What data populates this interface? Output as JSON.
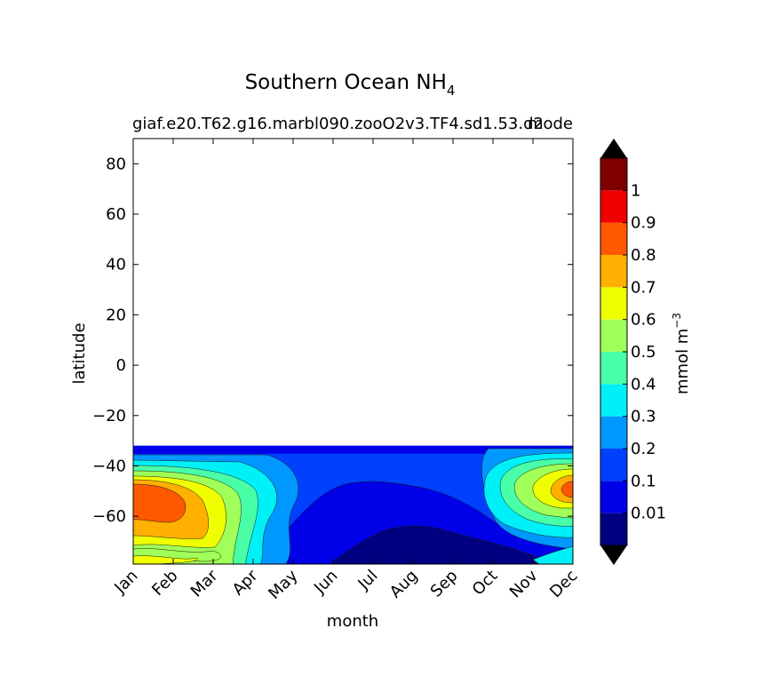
{
  "chart_data": {
    "type": "heatmap",
    "title_main": "Southern Ocean NH",
    "title_sub": "4",
    "subtitle_left": "giaf.e20.T62.g16.marbl090.zooO2v3.TF4.sd1.53.d2",
    "subtitle_right": "mode",
    "xlabel": "month",
    "ylabel": "latitude",
    "colorbar_label": "mmol m",
    "colorbar_label_exp": "−3",
    "x_ticks": [
      "Jan",
      "Feb",
      "Mar",
      "Apr",
      "May",
      "Jun",
      "Jul",
      "Aug",
      "Sep",
      "Oct",
      "Nov",
      "Dec"
    ],
    "y_ticks": [
      "80",
      "60",
      "40",
      "20",
      "0",
      "−20",
      "−40",
      "−60"
    ],
    "y_tick_values": [
      80,
      60,
      40,
      20,
      0,
      -20,
      -40,
      -60
    ],
    "ylim": [
      -79,
      90
    ],
    "data_extent_lat": [
      -79,
      -32
    ],
    "colorbar_levels": [
      0,
      0.01,
      0.1,
      0.2,
      0.3,
      0.4,
      0.5,
      0.6,
      0.7,
      0.8,
      0.9,
      1.0,
      1.1
    ],
    "colorbar_ticks": [
      "0.01",
      "0.1",
      "0.2",
      "0.3",
      "0.4",
      "0.5",
      "0.6",
      "0.7",
      "0.8",
      "0.9",
      "1"
    ],
    "colors": [
      "#000080",
      "#0000e8",
      "#0040ff",
      "#0098ff",
      "#00f0f8",
      "#48ffa8",
      "#a0ff58",
      "#f0ff00",
      "#ffb000",
      "#ff5800",
      "#f00000",
      "#800000"
    ],
    "extend_low_color": "#000000",
    "extend_high_color": "#000000",
    "grid": false,
    "legend": "colorbar-right"
  }
}
